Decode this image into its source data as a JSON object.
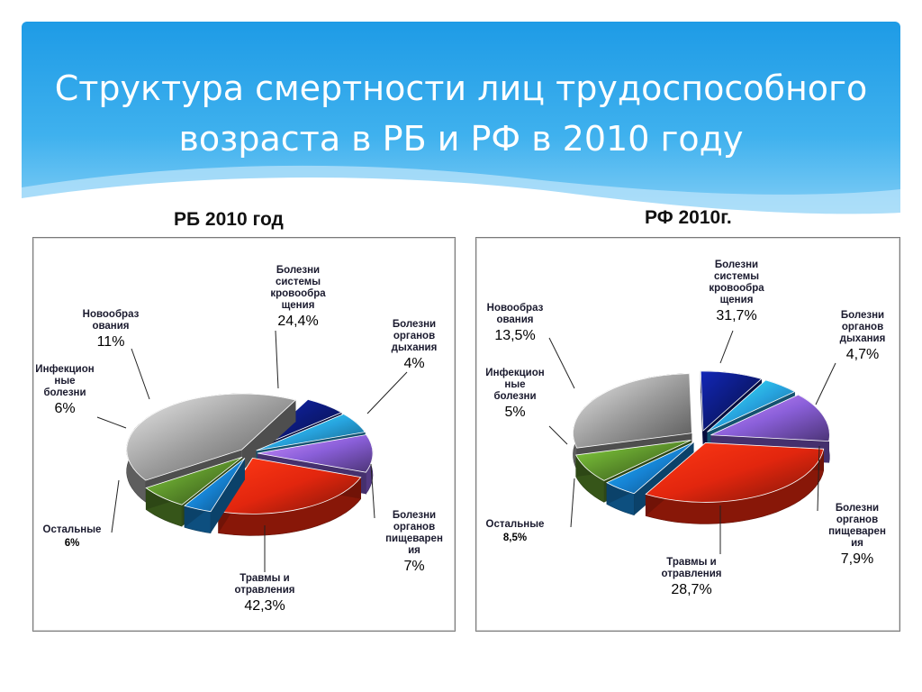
{
  "slide": {
    "title_line1": "Структура смертности лиц трудоспособного",
    "title_line2": "возраста в РБ и РФ в 2010 году"
  },
  "chart_data": [
    {
      "type": "pie",
      "title": "РБ 2010 год",
      "series": [
        {
          "key": "cardio",
          "label_lines": [
            "Болезни",
            "системы",
            "кровообра",
            "щения"
          ],
          "pct_label": "24,4%",
          "value": 24.4,
          "color": "#e2260e"
        },
        {
          "key": "resp",
          "label_lines": [
            "Болезни",
            "органов",
            "дыхания"
          ],
          "pct_label": "4%",
          "value": 4,
          "color": "#1683d4"
        },
        {
          "key": "digest",
          "label_lines": [
            "Болезни",
            "органов",
            "пищеварен",
            "ия"
          ],
          "pct_label": "7%",
          "value": 7,
          "color": "#5a8e2a"
        },
        {
          "key": "trauma",
          "label_lines": [
            "Травмы и",
            "отравления"
          ],
          "pct_label": "42,3%",
          "value": 42.3,
          "color": "#9c9c9c"
        },
        {
          "key": "other",
          "label_lines": [
            "Остальные"
          ],
          "pct_label": "6%",
          "value": 6,
          "color": "#0c1a7a"
        },
        {
          "key": "infect",
          "label_lines": [
            "Инфекцион",
            "ные",
            "болезни"
          ],
          "pct_label": "6%",
          "value": 6,
          "color": "#27a3de"
        },
        {
          "key": "neo",
          "label_lines": [
            "Новообраз",
            "ования"
          ],
          "pct_label": "11%",
          "value": 11,
          "color": "#8a5fd9"
        }
      ]
    },
    {
      "type": "pie",
      "title": "РФ 2010г.",
      "series": [
        {
          "key": "cardio",
          "label_lines": [
            "Болезни",
            "системы",
            "кровообра",
            "щения"
          ],
          "pct_label": "31,7%",
          "value": 31.7,
          "color": "#e2260e"
        },
        {
          "key": "resp",
          "label_lines": [
            "Болезни",
            "органов",
            "дыхания"
          ],
          "pct_label": "4,7%",
          "value": 4.7,
          "color": "#1683d4"
        },
        {
          "key": "digest",
          "label_lines": [
            "Болезни",
            "органов",
            "пищеварен",
            "ия"
          ],
          "pct_label": "7,9%",
          "value": 7.9,
          "color": "#5a8e2a"
        },
        {
          "key": "trauma",
          "label_lines": [
            "Травмы и",
            "отравления"
          ],
          "pct_label": "28,7%",
          "value": 28.7,
          "color": "#9c9c9c"
        },
        {
          "key": "other",
          "label_lines": [
            "Остальные"
          ],
          "pct_label": "8,5%",
          "value": 8.5,
          "color": "#0c1a7a"
        },
        {
          "key": "infect",
          "label_lines": [
            "Инфекцион",
            "ные",
            "болезни"
          ],
          "pct_label": "5%",
          "value": 5,
          "color": "#27a3de"
        },
        {
          "key": "neo",
          "label_lines": [
            "Новообраз",
            "ования"
          ],
          "pct_label": "13,5%",
          "value": 13.5,
          "color": "#8a5fd9"
        }
      ]
    }
  ]
}
